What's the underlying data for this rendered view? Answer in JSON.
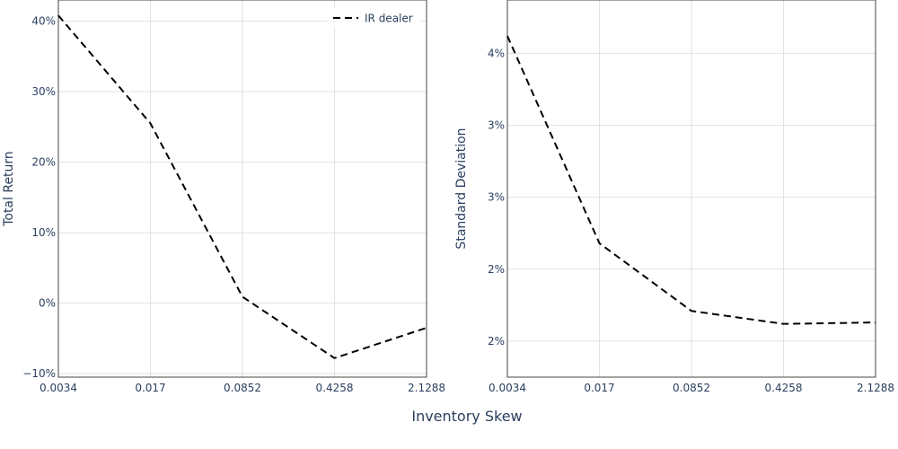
{
  "chart_data": [
    {
      "type": "line",
      "x_ticks": [
        "0.0034",
        "0.017",
        "0.0852",
        "0.4258",
        "2.1288"
      ],
      "y_ticks": [
        -10,
        0,
        10,
        20,
        30,
        40
      ],
      "y_tick_labels": [
        "−10%",
        "0%",
        "10%",
        "20%",
        "30%",
        "40%"
      ],
      "ylim": [
        -10.5,
        43
      ],
      "ylabel": "Total Return",
      "grid": true,
      "legend": "top-right",
      "series": [
        {
          "name": "IR dealer",
          "color": "#000000",
          "dash": "dashed",
          "x": [
            "0.0034",
            "0.017",
            "0.0852",
            "0.4258",
            "2.1288"
          ],
          "y": [
            40.8,
            25.5,
            0.9,
            -7.8,
            -3.5
          ]
        }
      ]
    },
    {
      "type": "line",
      "x_ticks": [
        "0.0034",
        "0.017",
        "0.0852",
        "0.4258",
        "2.1288"
      ],
      "y_ticks": [
        1.75,
        2.25,
        2.75,
        3.25,
        3.75
      ],
      "y_tick_labels": [
        "2%",
        "2%",
        "3%",
        "3%",
        "4%"
      ],
      "ylim": [
        1.5,
        4.12
      ],
      "ylabel": "Standard Deviation",
      "grid": true,
      "series": [
        {
          "name": "",
          "color": "#000000",
          "dash": "dashed",
          "x": [
            "0.0034",
            "0.017",
            "0.0852",
            "0.4258",
            "2.1288"
          ],
          "y": [
            3.87,
            2.43,
            1.96,
            1.87,
            1.88
          ]
        }
      ]
    }
  ],
  "shared_xlabel": "Inventory Skew"
}
